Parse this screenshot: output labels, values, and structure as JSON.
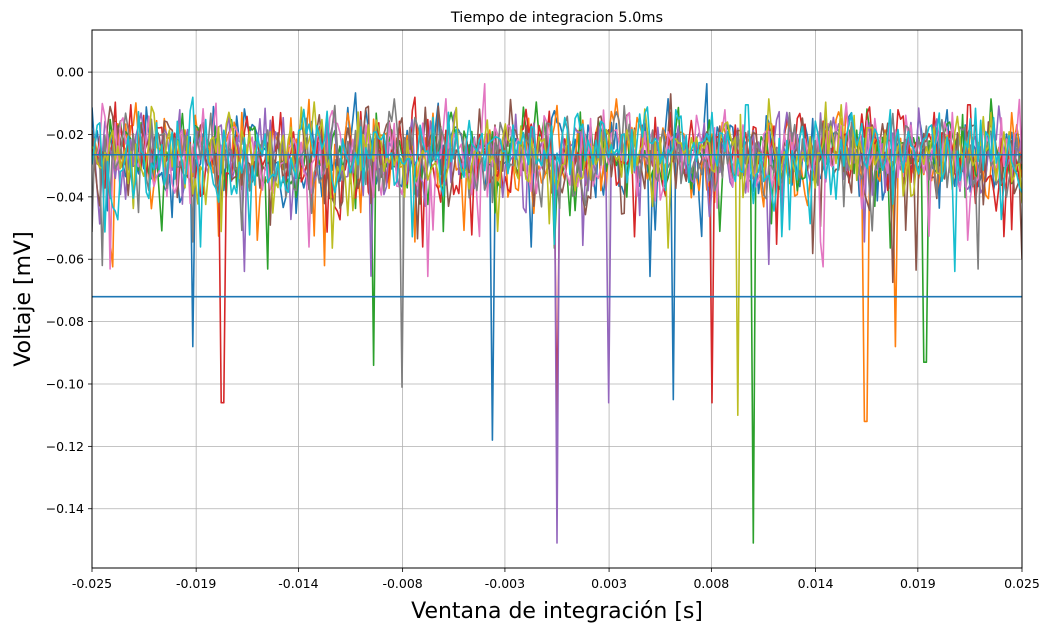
{
  "chart_data": {
    "type": "line",
    "title": "Tiempo de integracion 5.0ms",
    "xlabel": "Ventana de integración [s]",
    "ylabel": "Voltaje [mV]",
    "xlim": [
      -0.025,
      0.025
    ],
    "ylim": [
      -0.159,
      0.0135
    ],
    "grid": true,
    "x_ticks": [
      -0.025,
      -0.0194,
      -0.0139,
      -0.0083,
      -0.0028,
      0.0028,
      0.0083,
      0.0139,
      0.0194,
      0.025
    ],
    "x_tick_labels": [
      "-0.025",
      "-0.019",
      "-0.014",
      "-0.008",
      "-0.003",
      "0.003",
      "0.008",
      "0.014",
      "0.019",
      "0.025"
    ],
    "y_ticks": [
      0.0,
      -0.02,
      -0.04,
      -0.06,
      -0.08,
      -0.1,
      -0.12,
      -0.14
    ],
    "y_tick_labels": [
      "0.00",
      "−0.02",
      "−0.04",
      "−0.06",
      "−0.08",
      "−0.10",
      "−0.12",
      "−0.14"
    ],
    "series_colors": [
      "#1f77b4",
      "#ff7f0e",
      "#2ca02c",
      "#d62728",
      "#9467bd",
      "#8c564b",
      "#e377c2",
      "#7f7f7f",
      "#bcbd22",
      "#17becf"
    ],
    "noise_band": {
      "baseline_mean": -0.026,
      "typical_min": -0.065,
      "typical_max": 0.0
    },
    "notable_spikes": [
      {
        "x": -0.0196,
        "y": -0.088,
        "color": "#1f77b4"
      },
      {
        "x": -0.018,
        "y": -0.106,
        "color": "#d62728"
      },
      {
        "x": -0.0099,
        "y": -0.094,
        "color": "#2ca02c"
      },
      {
        "x": -0.0083,
        "y": -0.101,
        "color": "#7f7f7f"
      },
      {
        "x": -0.0035,
        "y": -0.118,
        "color": "#1f77b4"
      },
      {
        "x": 0.0,
        "y": -0.151,
        "color": "#9467bd"
      },
      {
        "x": 0.0,
        "y": -0.113,
        "color": "#d62728"
      },
      {
        "x": 0.0028,
        "y": -0.106,
        "color": "#9467bd"
      },
      {
        "x": 0.0063,
        "y": -0.105,
        "color": "#1f77b4"
      },
      {
        "x": 0.0083,
        "y": -0.106,
        "color": "#d62728"
      },
      {
        "x": 0.0097,
        "y": -0.11,
        "color": "#bcbd22"
      },
      {
        "x": 0.0105,
        "y": -0.151,
        "color": "#2ca02c"
      },
      {
        "x": 0.0166,
        "y": -0.112,
        "color": "#ff7f0e"
      },
      {
        "x": 0.0182,
        "y": -0.088,
        "color": "#ff7f0e"
      },
      {
        "x": 0.0198,
        "y": -0.093,
        "color": "#2ca02c"
      }
    ],
    "horizontal_lines": [
      {
        "y": -0.0265,
        "color": "#1f77b4"
      },
      {
        "y": -0.072,
        "color": "#1f77b4"
      }
    ]
  }
}
